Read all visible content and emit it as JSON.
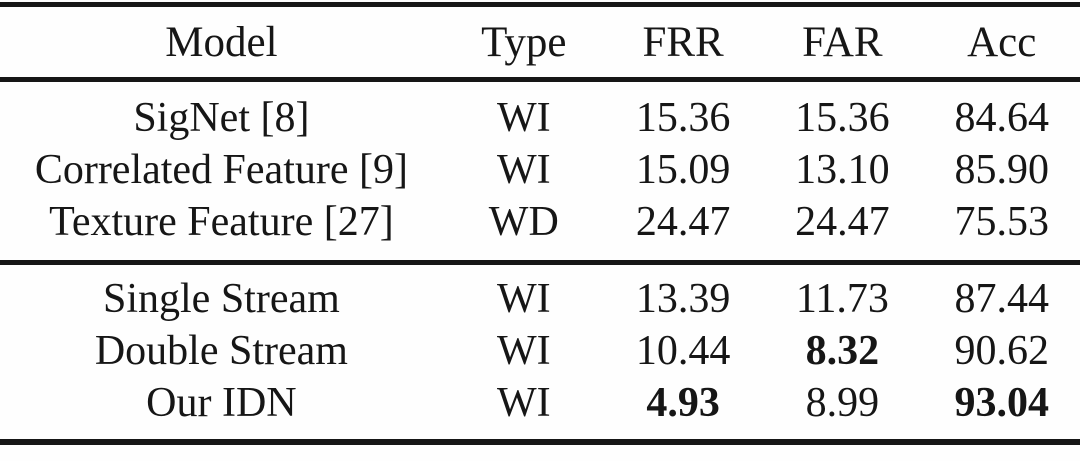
{
  "table": {
    "columns": [
      "Model",
      "Type",
      "FRR",
      "FAR",
      "Acc"
    ],
    "groups": [
      {
        "rows": [
          {
            "cells": [
              {
                "t": "SigNet [8]"
              },
              {
                "t": "WI"
              },
              {
                "t": "15.36"
              },
              {
                "t": "15.36"
              },
              {
                "t": "84.64"
              }
            ]
          },
          {
            "cells": [
              {
                "t": "Correlated Feature [9]"
              },
              {
                "t": "WI"
              },
              {
                "t": "15.09"
              },
              {
                "t": "13.10"
              },
              {
                "t": "85.90"
              }
            ]
          },
          {
            "cells": [
              {
                "t": "Texture Feature [27]"
              },
              {
                "t": "WD"
              },
              {
                "t": "24.47"
              },
              {
                "t": "24.47"
              },
              {
                "t": "75.53"
              }
            ]
          }
        ]
      },
      {
        "rows": [
          {
            "cells": [
              {
                "t": "Single Stream"
              },
              {
                "t": "WI"
              },
              {
                "t": "13.39"
              },
              {
                "t": "11.73"
              },
              {
                "t": "87.44"
              }
            ]
          },
          {
            "cells": [
              {
                "t": "Double Stream"
              },
              {
                "t": "WI"
              },
              {
                "t": "10.44"
              },
              {
                "t": "8.32",
                "bold": true
              },
              {
                "t": "90.62"
              }
            ]
          },
          {
            "cells": [
              {
                "t": "Our IDN"
              },
              {
                "t": "WI"
              },
              {
                "t": "4.93",
                "bold": true
              },
              {
                "t": "8.99"
              },
              {
                "t": "93.04",
                "bold": true
              }
            ]
          }
        ]
      }
    ],
    "colors": {
      "text": "#161616",
      "rule": "#161616",
      "background": "#fefefe"
    }
  }
}
